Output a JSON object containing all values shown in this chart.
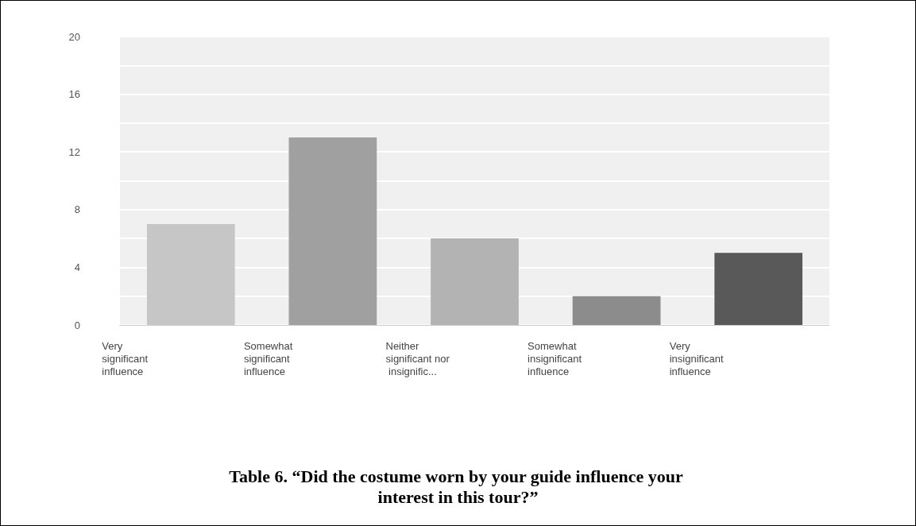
{
  "chart_data": {
    "type": "bar",
    "title": "Table 6. “Did the costume worn by your guide influence your interest in this tour?”",
    "categories": [
      "Very significant influence",
      "Somewhat significant influence",
      "Neither significant nor insignific...",
      "Somewhat insignificant influence",
      "Very insignificant influence"
    ],
    "values": [
      7,
      13,
      6,
      2,
      5
    ],
    "colors": [
      "#c6c6c6",
      "#a0a0a0",
      "#b3b3b3",
      "#8c8c8c",
      "#595959"
    ],
    "ylim": [
      0,
      20
    ],
    "yticks": [
      0,
      4,
      8,
      12,
      16,
      20
    ],
    "grid": true
  }
}
